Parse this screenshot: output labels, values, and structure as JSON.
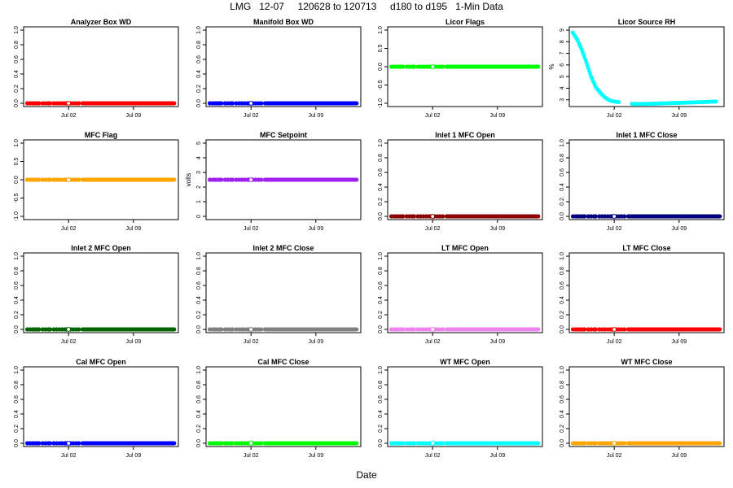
{
  "title": "LMG   12-07     120628 to 120713     d180 to d195   1-Min Data",
  "xlabel": "Date",
  "chart_data": [
    {
      "type": "scatter",
      "title": "Analyzer Box WD",
      "ylabel": "",
      "ylim": [
        0,
        1
      ],
      "yticks": [
        "0.0",
        "0.2",
        "0.4",
        "0.6",
        "0.8",
        "1.0"
      ],
      "xticks": [
        "Jul 02",
        "Jul 09"
      ],
      "color": "#ff0000",
      "value": 0
    },
    {
      "type": "scatter",
      "title": "Manifold Box WD",
      "ylabel": "",
      "ylim": [
        0,
        1
      ],
      "yticks": [
        "0.0",
        "0.2",
        "0.4",
        "0.6",
        "0.8",
        "1.0"
      ],
      "xticks": [
        "Jul 02",
        "Jul 09"
      ],
      "color": "#0000ff",
      "value": 0
    },
    {
      "type": "scatter",
      "title": "Licor Flags",
      "ylabel": "",
      "ylim": [
        -1,
        1
      ],
      "yticks": [
        "-1.0",
        "-0.5",
        "0.0",
        "0.5",
        "1.0"
      ],
      "xticks": [
        "Jul 02",
        "Jul 09"
      ],
      "color": "#00ff00",
      "value": 0
    },
    {
      "type": "scatter",
      "title": "Licor Source RH",
      "ylabel": "%",
      "ylim": [
        2.7,
        9
      ],
      "yticks": [
        "3",
        "4",
        "5",
        "6",
        "7",
        "8",
        "9"
      ],
      "xticks": [
        "Jul 02",
        "Jul 09"
      ],
      "color": "#00ffff",
      "value": null,
      "points": [
        [
          0.0,
          8.8
        ],
        [
          0.5,
          8.2
        ],
        [
          1.0,
          7.3
        ],
        [
          1.5,
          6.2
        ],
        [
          2.0,
          5.0
        ],
        [
          2.5,
          4.1
        ],
        [
          3.0,
          3.6
        ],
        [
          3.5,
          3.2
        ],
        [
          4.0,
          2.95
        ],
        [
          4.5,
          2.85
        ],
        [
          5.0,
          2.8
        ],
        [
          6.5,
          2.65
        ],
        [
          8,
          2.65
        ],
        [
          10,
          2.7
        ],
        [
          12,
          2.75
        ],
        [
          14,
          2.8
        ],
        [
          15.5,
          2.85
        ]
      ]
    },
    {
      "type": "scatter",
      "title": "MFC Flag",
      "ylabel": "",
      "ylim": [
        -1,
        1
      ],
      "yticks": [
        "-1.0",
        "-0.5",
        "0.0",
        "0.5",
        "1.0"
      ],
      "xticks": [
        "Jul 02",
        "Jul 09"
      ],
      "color": "#ffa500",
      "value": 0
    },
    {
      "type": "scatter",
      "title": "MFC Setpoint",
      "ylabel": "volts",
      "ylim": [
        0,
        5
      ],
      "yticks": [
        "0",
        "1",
        "2",
        "3",
        "4",
        "5"
      ],
      "xticks": [
        "Jul 02",
        "Jul 09"
      ],
      "color": "#a020f0",
      "value": 2.5
    },
    {
      "type": "scatter",
      "title": "Inlet 1 MFC Open",
      "ylabel": "",
      "ylim": [
        0,
        1
      ],
      "yticks": [
        "0.0",
        "0.2",
        "0.4",
        "0.6",
        "0.8",
        "1.0"
      ],
      "xticks": [
        "Jul 02",
        "Jul 09"
      ],
      "color": "#8b0000",
      "value": 0
    },
    {
      "type": "scatter",
      "title": "Inlet 1 MFC Close",
      "ylabel": "",
      "ylim": [
        0,
        1
      ],
      "yticks": [
        "0.0",
        "0.2",
        "0.4",
        "0.6",
        "0.8",
        "1.0"
      ],
      "xticks": [
        "Jul 02",
        "Jul 09"
      ],
      "color": "#000080",
      "value": 0
    },
    {
      "type": "scatter",
      "title": "Inlet 2 MFC Open",
      "ylabel": "",
      "ylim": [
        0,
        1
      ],
      "yticks": [
        "0.0",
        "0.2",
        "0.4",
        "0.6",
        "0.8",
        "1.0"
      ],
      "xticks": [
        "Jul 02",
        "Jul 09"
      ],
      "color": "#006400",
      "value": 0
    },
    {
      "type": "scatter",
      "title": "Inlet 2 MFC Close",
      "ylabel": "",
      "ylim": [
        0,
        1
      ],
      "yticks": [
        "0.0",
        "0.2",
        "0.4",
        "0.6",
        "0.8",
        "1.0"
      ],
      "xticks": [
        "Jul 02",
        "Jul 09"
      ],
      "color": "#808080",
      "value": 0
    },
    {
      "type": "scatter",
      "title": "LT MFC Open",
      "ylabel": "",
      "ylim": [
        0,
        1
      ],
      "yticks": [
        "0.0",
        "0.2",
        "0.4",
        "0.6",
        "0.8",
        "1.0"
      ],
      "xticks": [
        "Jul 02",
        "Jul 09"
      ],
      "color": "#ee82ee",
      "value": 0
    },
    {
      "type": "scatter",
      "title": "LT MFC Close",
      "ylabel": "",
      "ylim": [
        0,
        1
      ],
      "yticks": [
        "0.0",
        "0.2",
        "0.4",
        "0.6",
        "0.8",
        "1.0"
      ],
      "xticks": [
        "Jul 02",
        "Jul 09"
      ],
      "color": "#ff0000",
      "value": 0
    },
    {
      "type": "scatter",
      "title": "Cal MFC Open",
      "ylabel": "",
      "ylim": [
        0,
        1
      ],
      "yticks": [
        "0.0",
        "0.2",
        "0.4",
        "0.6",
        "0.8",
        "1.0"
      ],
      "xticks": [
        "Jul 02",
        "Jul 09"
      ],
      "color": "#0000ff",
      "value": 0
    },
    {
      "type": "scatter",
      "title": "Cal MFC Close",
      "ylabel": "",
      "ylim": [
        0,
        1
      ],
      "yticks": [
        "0.0",
        "0.2",
        "0.4",
        "0.6",
        "0.8",
        "1.0"
      ],
      "xticks": [
        "Jul 02",
        "Jul 09"
      ],
      "color": "#00ff00",
      "value": 0
    },
    {
      "type": "scatter",
      "title": "WT MFC Open",
      "ylabel": "",
      "ylim": [
        0,
        1
      ],
      "yticks": [
        "0.0",
        "0.2",
        "0.4",
        "0.6",
        "0.8",
        "1.0"
      ],
      "xticks": [
        "Jul 02",
        "Jul 09"
      ],
      "color": "#00ffff",
      "value": 0
    },
    {
      "type": "scatter",
      "title": "WT MFC Close",
      "ylabel": "",
      "ylim": [
        0,
        1
      ],
      "yticks": [
        "0.0",
        "0.2",
        "0.4",
        "0.6",
        "0.8",
        "1.0"
      ],
      "xticks": [
        "Jul 02",
        "Jul 09"
      ],
      "color": "#ffa500",
      "value": 0
    }
  ]
}
